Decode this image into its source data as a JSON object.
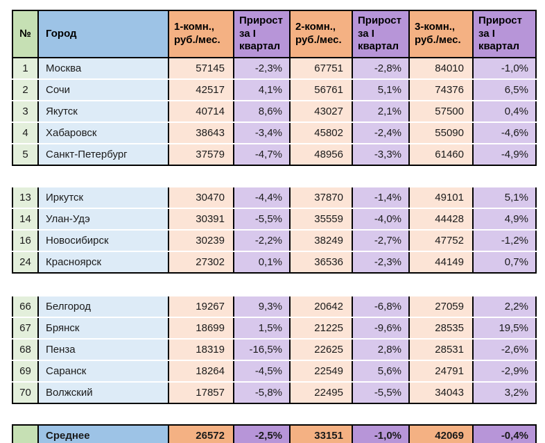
{
  "colors": {
    "border": "#000000",
    "header_green": "#c6e0b4",
    "header_blue": "#9dc3e6",
    "header_orange": "#f4b183",
    "header_purple": "#b795d8",
    "body_green": "#e3efdb",
    "body_blue": "#ddebf7",
    "body_orange": "#fce4d6",
    "body_purple": "#d8c8ec",
    "separator": "#ffffff",
    "text": "#1a1a1a"
  },
  "table": {
    "headers": [
      {
        "label": "№"
      },
      {
        "label": "Город"
      },
      {
        "label": "1-комн.,\nруб./мес."
      },
      {
        "label": "Прирост\nза I\nквартал"
      },
      {
        "label": "2-комн.,\nруб./мес."
      },
      {
        "label": "Прирост\nза I\nквартал"
      },
      {
        "label": "3-комн.,\nруб./мес."
      },
      {
        "label": "Прирост\nза I\nквартал"
      }
    ],
    "blocks": [
      {
        "rows": [
          {
            "num": "1",
            "city": "Москва",
            "r1": "57145",
            "g1": "-2,3%",
            "r2": "67751",
            "g2": "-2,8%",
            "r3": "84010",
            "g3": "-1,0%"
          },
          {
            "num": "2",
            "city": "Сочи",
            "r1": "42517",
            "g1": "4,1%",
            "r2": "56761",
            "g2": "5,1%",
            "r3": "74376",
            "g3": "6,5%"
          },
          {
            "num": "3",
            "city": "Якутск",
            "r1": "40714",
            "g1": "8,6%",
            "r2": "43027",
            "g2": "2,1%",
            "r3": "57500",
            "g3": "0,4%"
          },
          {
            "num": "4",
            "city": "Хабаровск",
            "r1": "38643",
            "g1": "-3,4%",
            "r2": "45802",
            "g2": "-2,4%",
            "r3": "55090",
            "g3": "-4,6%"
          },
          {
            "num": "5",
            "city": "Санкт-Петербург",
            "r1": "37579",
            "g1": "-4,7%",
            "r2": "48956",
            "g2": "-3,3%",
            "r3": "61460",
            "g3": "-4,9%"
          }
        ]
      },
      {
        "rows": [
          {
            "num": "13",
            "city": "Иркутск",
            "r1": "30470",
            "g1": "-4,4%",
            "r2": "37870",
            "g2": "-1,4%",
            "r3": "49101",
            "g3": "5,1%"
          },
          {
            "num": "14",
            "city": "Улан-Удэ",
            "r1": "30391",
            "g1": "-5,5%",
            "r2": "35559",
            "g2": "-4,0%",
            "r3": "44428",
            "g3": "4,9%"
          },
          {
            "num": "16",
            "city": "Новосибирск",
            "r1": "30239",
            "g1": "-2,2%",
            "r2": "38249",
            "g2": "-2,7%",
            "r3": "47752",
            "g3": "-1,2%"
          },
          {
            "num": "24",
            "city": "Красноярск",
            "r1": "27302",
            "g1": "0,1%",
            "r2": "36536",
            "g2": "-2,3%",
            "r3": "44149",
            "g3": "0,7%"
          }
        ]
      },
      {
        "rows": [
          {
            "num": "66",
            "city": "Белгород",
            "r1": "19267",
            "g1": "9,3%",
            "r2": "20642",
            "g2": "-6,8%",
            "r3": "27059",
            "g3": "2,2%"
          },
          {
            "num": "67",
            "city": "Брянск",
            "r1": "18699",
            "g1": "1,5%",
            "r2": "21225",
            "g2": "-9,6%",
            "r3": "28535",
            "g3": "19,5%"
          },
          {
            "num": "68",
            "city": "Пенза",
            "r1": "18319",
            "g1": "-16,5%",
            "r2": "22625",
            "g2": "2,8%",
            "r3": "28531",
            "g3": "-2,6%"
          },
          {
            "num": "69",
            "city": "Саранск",
            "r1": "18264",
            "g1": "-4,5%",
            "r2": "22549",
            "g2": "5,6%",
            "r3": "24791",
            "g3": "-2,9%"
          },
          {
            "num": "70",
            "city": "Волжский",
            "r1": "17857",
            "g1": "-5,8%",
            "r2": "22495",
            "g2": "-5,5%",
            "r3": "34043",
            "g3": "3,2%"
          }
        ]
      }
    ],
    "summary": {
      "num": "",
      "label": "Среднее",
      "r1": "26572",
      "g1": "-2,5%",
      "r2": "33151",
      "g2": "-1,0%",
      "r3": "42069",
      "g3": "-0,4%"
    }
  }
}
